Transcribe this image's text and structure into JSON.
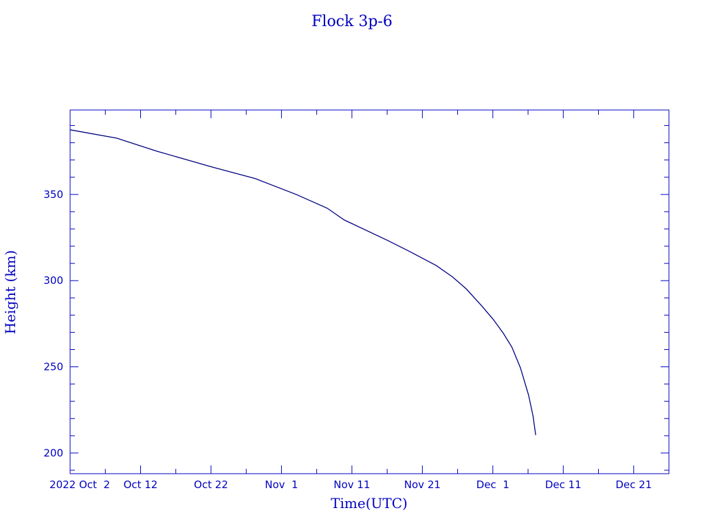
{
  "chart_data": {
    "type": "line",
    "title": "Flock 3p-6",
    "xlabel": "Time(UTC)",
    "ylabel": "Height (km)",
    "xlim": [
      "2022-10-02T00:00Z",
      "2022-12-26T00:00Z"
    ],
    "ylim": [
      188,
      399
    ],
    "x_ticks": [
      {
        "date": "2022-10-02T00:00Z",
        "label": "2022 Oct  2"
      },
      {
        "date": "2022-10-12T00:00Z",
        "label": "Oct 12"
      },
      {
        "date": "2022-10-22T00:00Z",
        "label": "Oct 22"
      },
      {
        "date": "2022-11-01T00:00Z",
        "label": "Nov  1"
      },
      {
        "date": "2022-11-11T00:00Z",
        "label": "Nov 11"
      },
      {
        "date": "2022-11-21T00:00Z",
        "label": "Nov 21"
      },
      {
        "date": "2022-12-01T00:00Z",
        "label": "Dec  1"
      },
      {
        "date": "2022-12-11T00:00Z",
        "label": "Dec 11"
      },
      {
        "date": "2022-12-21T00:00Z",
        "label": "Dec 21"
      }
    ],
    "y_ticks": [
      200,
      250,
      300,
      350
    ],
    "grid": false,
    "colors": {
      "axis": "#0000c0",
      "line": "#000080"
    },
    "series": [
      {
        "x": [
          "2022-10-02T00:00Z",
          "2022-10-08T14:00Z",
          "2022-10-14T07:00Z",
          "2022-10-22T02:00Z",
          "2022-10-28T07:00Z",
          "2022-11-03T02:00Z",
          "2022-11-07T12:00Z",
          "2022-11-09T22:00Z",
          "2022-11-16T02:00Z",
          "2022-11-19T00:00Z",
          "2022-11-22T22:00Z",
          "2022-11-25T07:00Z",
          "2022-11-27T05:00Z",
          "2022-11-29T10:00Z",
          "2022-12-01T02:00Z",
          "2022-12-02T12:00Z",
          "2022-12-03T17:00Z",
          "2022-12-04T22:00Z",
          "2022-12-06T02:00Z",
          "2022-12-06T17:00Z",
          "2022-12-07T02:00Z"
        ],
        "y": [
          387.5,
          382.7,
          375.1,
          366.0,
          359.2,
          350.0,
          342.0,
          335.2,
          323.3,
          317.3,
          308.9,
          302.1,
          295.3,
          285.4,
          277.4,
          269.4,
          261.4,
          249.4,
          233.5,
          221.5,
          210.4
        ]
      }
    ]
  }
}
